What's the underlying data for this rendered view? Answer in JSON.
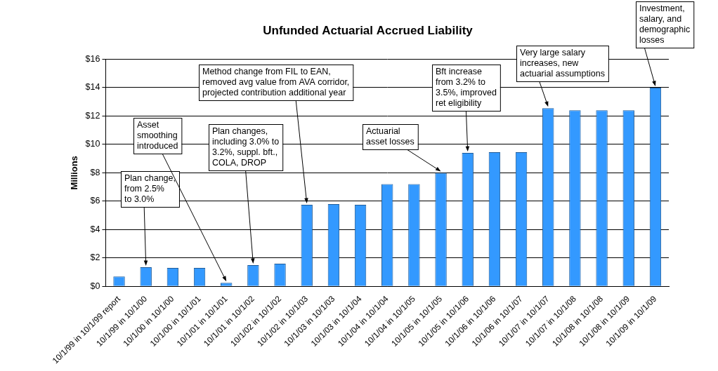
{
  "chart_data": {
    "type": "bar",
    "title": "Unfunded Actuarial Accrued Liability",
    "y_label": "Millions",
    "categories": [
      "10/1/99 in 10/1/99 report",
      "10/1/99 in 10/1/00",
      "10/1/00 in 10/1/00",
      "10/1/00 in 10/1/01",
      "10/1/01 in 10/1/01",
      "10/1/01 in 10/1/02",
      "10/1/02 in 10/1/02",
      "10/1/02 in 10/1/03",
      "10/1/03 in 10/1/03",
      "10/1/03 in 10/1/04",
      "10/1/04 in 10/1/04",
      "10/1/04 in 10/1/05",
      "10/1/05 in 10/1/05",
      "10/1/05 in 10/1/06",
      "10/1/06 in 10/1/06",
      "10/1/06 in 10/1/07",
      "10/1/07 in 10/1/07",
      "10/1/07 in 10/1/08",
      "10/1/08 in 10/1/08",
      "10/1/08 in 10/1/09",
      "10/1/09 in 10/1/09"
    ],
    "values": [
      0.7,
      1.35,
      1.3,
      1.3,
      0.25,
      1.5,
      1.6,
      5.75,
      5.8,
      5.75,
      7.2,
      7.2,
      8.0,
      9.4,
      9.45,
      9.45,
      12.55,
      12.4,
      12.4,
      12.4,
      14.0
    ],
    "color": "#3399ff",
    "ylim": [
      0,
      16
    ],
    "yticks": [
      {
        "value": 0,
        "label": "$0"
      },
      {
        "value": 2,
        "label": "$2"
      },
      {
        "value": 4,
        "label": "$4"
      },
      {
        "value": 6,
        "label": "$6"
      },
      {
        "value": 8,
        "label": "$8"
      },
      {
        "value": 10,
        "label": "$10"
      },
      {
        "value": 12,
        "label": "$12"
      },
      {
        "value": 14,
        "label": "$14"
      },
      {
        "value": 16,
        "label": "$16"
      }
    ],
    "grid": true,
    "annotations": [
      {
        "text": "Plan change,\nfrom 2.5%\nto 3.0%",
        "category": "10/1/99 in 10/1/00"
      },
      {
        "text": "Asset\nsmoothing\nintroduced",
        "category": "10/1/01 in 10/1/01"
      },
      {
        "text": "Plan changes,\nincluding 3.0% to\n3.2%, suppl. bft.,\nCOLA, DROP",
        "category": "10/1/01 in 10/1/02"
      },
      {
        "text": "Method change from FIL to EAN,\nremoved avg value from AVA corridor,\nprojected contribution additional year",
        "category": "10/1/02 in 10/1/03"
      },
      {
        "text": "Actuarial\nasset losses",
        "category": "10/1/05 in 10/1/05"
      },
      {
        "text": "Bft increase\nfrom 3.2% to\n3.5%, improved\nret eligibility",
        "category": "10/1/05 in 10/1/06"
      },
      {
        "text": "Very large salary\nincreases, new\nactuarial assumptions",
        "category": "10/1/07 in 10/1/07"
      },
      {
        "text": "Investment,\nsalary, and\ndemographic\nlosses",
        "category": "10/1/09 in 10/1/09"
      }
    ]
  }
}
